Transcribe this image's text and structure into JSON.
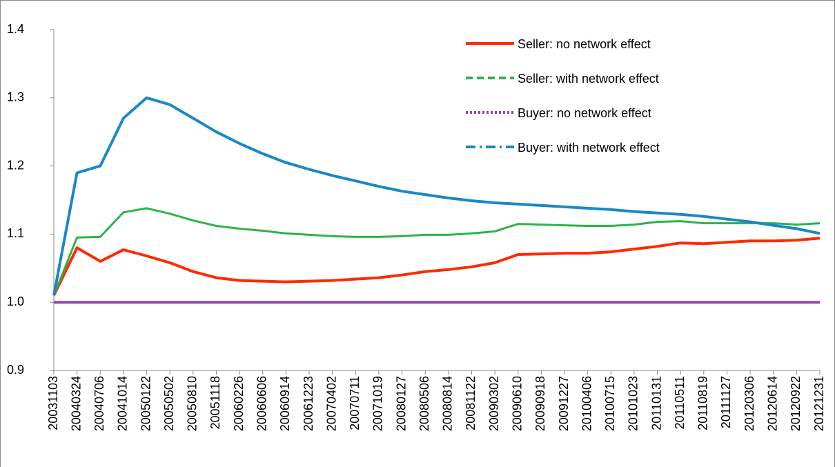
{
  "chart_data": {
    "type": "line",
    "categories": [
      "20031103",
      "20040324",
      "20040706",
      "20041014",
      "20050122",
      "20050502",
      "20050810",
      "20051118",
      "20060226",
      "20060606",
      "20060914",
      "20061223",
      "20070402",
      "20070711",
      "20071019",
      "20080127",
      "20080506",
      "20080814",
      "20081122",
      "20090302",
      "20090610",
      "20090918",
      "20091227",
      "20100406",
      "20100715",
      "20101023",
      "20110131",
      "20110511",
      "20110819",
      "20111127",
      "20120306",
      "20120614",
      "20120922",
      "20121231"
    ],
    "series": [
      {
        "name": "Seller: no network effect",
        "color": "#ff2a00",
        "values": [
          1.01,
          1.08,
          1.06,
          1.077,
          1.068,
          1.058,
          1.045,
          1.036,
          1.032,
          1.031,
          1.03,
          1.031,
          1.032,
          1.034,
          1.036,
          1.04,
          1.045,
          1.048,
          1.052,
          1.058,
          1.07,
          1.071,
          1.072,
          1.072,
          1.074,
          1.078,
          1.082,
          1.087,
          1.086,
          1.088,
          1.09,
          1.09,
          1.091,
          1.094
        ]
      },
      {
        "name": "Seller: with network effect",
        "color": "#2db34a",
        "values": [
          1.01,
          1.095,
          1.096,
          1.132,
          1.138,
          1.13,
          1.12,
          1.112,
          1.108,
          1.105,
          1.101,
          1.099,
          1.097,
          1.096,
          1.096,
          1.097,
          1.099,
          1.099,
          1.101,
          1.104,
          1.115,
          1.114,
          1.113,
          1.112,
          1.112,
          1.114,
          1.118,
          1.119,
          1.116,
          1.116,
          1.116,
          1.116,
          1.114,
          1.116
        ]
      },
      {
        "name": "Buyer: no network effect",
        "color": "#8e44ad",
        "values": [
          1,
          1,
          1,
          1,
          1,
          1,
          1,
          1,
          1,
          1,
          1,
          1,
          1,
          1,
          1,
          1,
          1,
          1,
          1,
          1,
          1,
          1,
          1,
          1,
          1,
          1,
          1,
          1,
          1,
          1,
          1,
          1,
          1,
          1
        ]
      },
      {
        "name": "Buyer: with network effect",
        "color": "#1a87c9",
        "values": [
          1.01,
          1.19,
          1.2,
          1.27,
          1.3,
          1.29,
          1.27,
          1.25,
          1.233,
          1.218,
          1.205,
          1.195,
          1.186,
          1.178,
          1.17,
          1.163,
          1.158,
          1.153,
          1.149,
          1.146,
          1.144,
          1.142,
          1.14,
          1.138,
          1.136,
          1.133,
          1.131,
          1.129,
          1.126,
          1.122,
          1.118,
          1.113,
          1.108,
          1.101
        ]
      }
    ],
    "ylim": [
      0.9,
      1.4
    ],
    "yticks": [
      0.9,
      {
        "value": 1.0,
        "label": "1.0"
      },
      1.1,
      1.2,
      1.3,
      1.4
    ],
    "grid": false,
    "legend": "top-right"
  }
}
